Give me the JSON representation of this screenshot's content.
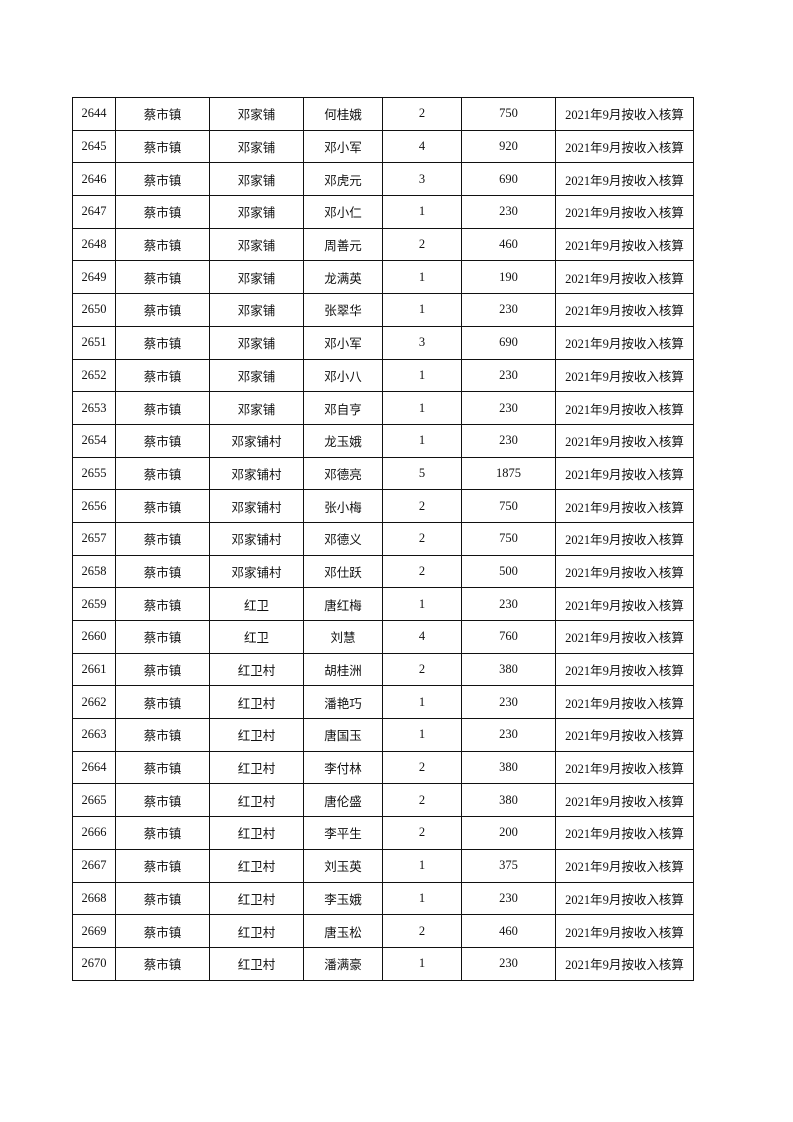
{
  "rows": [
    [
      "2644",
      "蔡市镇",
      "邓家铺",
      "何桂娥",
      "2",
      "750",
      "2021年9月按收入核算"
    ],
    [
      "2645",
      "蔡市镇",
      "邓家铺",
      "邓小军",
      "4",
      "920",
      "2021年9月按收入核算"
    ],
    [
      "2646",
      "蔡市镇",
      "邓家铺",
      "邓虎元",
      "3",
      "690",
      "2021年9月按收入核算"
    ],
    [
      "2647",
      "蔡市镇",
      "邓家铺",
      "邓小仁",
      "1",
      "230",
      "2021年9月按收入核算"
    ],
    [
      "2648",
      "蔡市镇",
      "邓家铺",
      "周善元",
      "2",
      "460",
      "2021年9月按收入核算"
    ],
    [
      "2649",
      "蔡市镇",
      "邓家铺",
      "龙满英",
      "1",
      "190",
      "2021年9月按收入核算"
    ],
    [
      "2650",
      "蔡市镇",
      "邓家铺",
      "张翠华",
      "1",
      "230",
      "2021年9月按收入核算"
    ],
    [
      "2651",
      "蔡市镇",
      "邓家铺",
      "邓小军",
      "3",
      "690",
      "2021年9月按收入核算"
    ],
    [
      "2652",
      "蔡市镇",
      "邓家铺",
      "邓小八",
      "1",
      "230",
      "2021年9月按收入核算"
    ],
    [
      "2653",
      "蔡市镇",
      "邓家铺",
      "邓自亨",
      "1",
      "230",
      "2021年9月按收入核算"
    ],
    [
      "2654",
      "蔡市镇",
      "邓家铺村",
      "龙玉娥",
      "1",
      "230",
      "2021年9月按收入核算"
    ],
    [
      "2655",
      "蔡市镇",
      "邓家铺村",
      "邓德亮",
      "5",
      "1875",
      "2021年9月按收入核算"
    ],
    [
      "2656",
      "蔡市镇",
      "邓家铺村",
      "张小梅",
      "2",
      "750",
      "2021年9月按收入核算"
    ],
    [
      "2657",
      "蔡市镇",
      "邓家铺村",
      "邓德义",
      "2",
      "750",
      "2021年9月按收入核算"
    ],
    [
      "2658",
      "蔡市镇",
      "邓家铺村",
      "邓仕跃",
      "2",
      "500",
      "2021年9月按收入核算"
    ],
    [
      "2659",
      "蔡市镇",
      "红卫",
      "唐红梅",
      "1",
      "230",
      "2021年9月按收入核算"
    ],
    [
      "2660",
      "蔡市镇",
      "红卫",
      "刘慧",
      "4",
      "760",
      "2021年9月按收入核算"
    ],
    [
      "2661",
      "蔡市镇",
      "红卫村",
      "胡桂洲",
      "2",
      "380",
      "2021年9月按收入核算"
    ],
    [
      "2662",
      "蔡市镇",
      "红卫村",
      "潘艳巧",
      "1",
      "230",
      "2021年9月按收入核算"
    ],
    [
      "2663",
      "蔡市镇",
      "红卫村",
      "唐国玉",
      "1",
      "230",
      "2021年9月按收入核算"
    ],
    [
      "2664",
      "蔡市镇",
      "红卫村",
      "李付林",
      "2",
      "380",
      "2021年9月按收入核算"
    ],
    [
      "2665",
      "蔡市镇",
      "红卫村",
      "唐伦盛",
      "2",
      "380",
      "2021年9月按收入核算"
    ],
    [
      "2666",
      "蔡市镇",
      "红卫村",
      "李平生",
      "2",
      "200",
      "2021年9月按收入核算"
    ],
    [
      "2667",
      "蔡市镇",
      "红卫村",
      "刘玉英",
      "1",
      "375",
      "2021年9月按收入核算"
    ],
    [
      "2668",
      "蔡市镇",
      "红卫村",
      "李玉娥",
      "1",
      "230",
      "2021年9月按收入核算"
    ],
    [
      "2669",
      "蔡市镇",
      "红卫村",
      "唐玉松",
      "2",
      "460",
      "2021年9月按收入核算"
    ],
    [
      "2670",
      "蔡市镇",
      "红卫村",
      "潘满豪",
      "1",
      "230",
      "2021年9月按收入核算"
    ]
  ]
}
